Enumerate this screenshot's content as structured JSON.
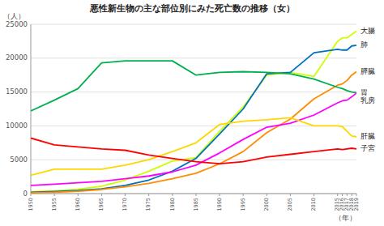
{
  "chart_data": {
    "type": "line",
    "title": "悪性新生物の主な部位別にみた死亡数の推移（女）",
    "xlabel": "（年）",
    "ylabel": "（人）",
    "x": [
      1950,
      1955,
      1960,
      1965,
      1970,
      1975,
      1980,
      1985,
      1990,
      1995,
      2000,
      2005,
      2010,
      2015,
      2016,
      2017,
      2018,
      2019
    ],
    "xlim": [
      1950,
      2019
    ],
    "xticks": [
      1950,
      1955,
      1960,
      1965,
      1970,
      1975,
      1980,
      1985,
      1990,
      1995,
      2000,
      2005,
      2010,
      2015,
      2016,
      2017,
      2018,
      2019
    ],
    "ylim": [
      0,
      25000
    ],
    "yticks": [
      0,
      5000,
      10000,
      15000,
      20000,
      25000
    ],
    "grid": true,
    "series": [
      {
        "name": "大腸",
        "color": "#ccff00",
        "values": [
          270,
          400,
          650,
          1100,
          2000,
          3300,
          4800,
          5300,
          9200,
          12800,
          17500,
          17900,
          17300,
          22500,
          23000,
          23000,
          23500,
          24000
        ]
      },
      {
        "name": "肺",
        "color": "#0070c0",
        "values": [
          200,
          300,
          450,
          700,
          1200,
          2000,
          3300,
          5200,
          8800,
          12500,
          17700,
          17900,
          20800,
          21300,
          21200,
          21200,
          21800,
          21900
        ]
      },
      {
        "name": "膵臓",
        "color": "#ff8c00",
        "values": [
          100,
          200,
          350,
          600,
          1000,
          1500,
          2200,
          3000,
          4400,
          6200,
          9000,
          11000,
          14000,
          16000,
          16200,
          16700,
          17500,
          18000
        ]
      },
      {
        "name": "胃",
        "color": "#00b050",
        "values": [
          12200,
          13800,
          15500,
          19300,
          19600,
          19600,
          19600,
          17500,
          17900,
          18000,
          17900,
          17700,
          16900,
          15700,
          15500,
          15200,
          15000,
          14900
        ]
      },
      {
        "name": "乳房",
        "color": "#ff00ff",
        "values": [
          1200,
          1400,
          1600,
          1800,
          2200,
          2600,
          3200,
          4200,
          6000,
          8000,
          9800,
          10400,
          11600,
          13400,
          13700,
          13800,
          14285,
          14839
        ]
      },
      {
        "name": "肝臓",
        "color": "#ffd700",
        "values": [
          2700,
          3600,
          3600,
          3600,
          4200,
          5000,
          6200,
          7500,
          10200,
          10700,
          10900,
          11200,
          10000,
          10000,
          9900,
          9200,
          8500,
          8400
        ]
      },
      {
        "name": "子宮",
        "color": "#ff0000",
        "values": [
          8200,
          7200,
          6900,
          6600,
          6400,
          5700,
          5200,
          4700,
          4400,
          4700,
          5400,
          5800,
          6200,
          6600,
          6500,
          6600,
          6700,
          6600
        ]
      }
    ]
  }
}
